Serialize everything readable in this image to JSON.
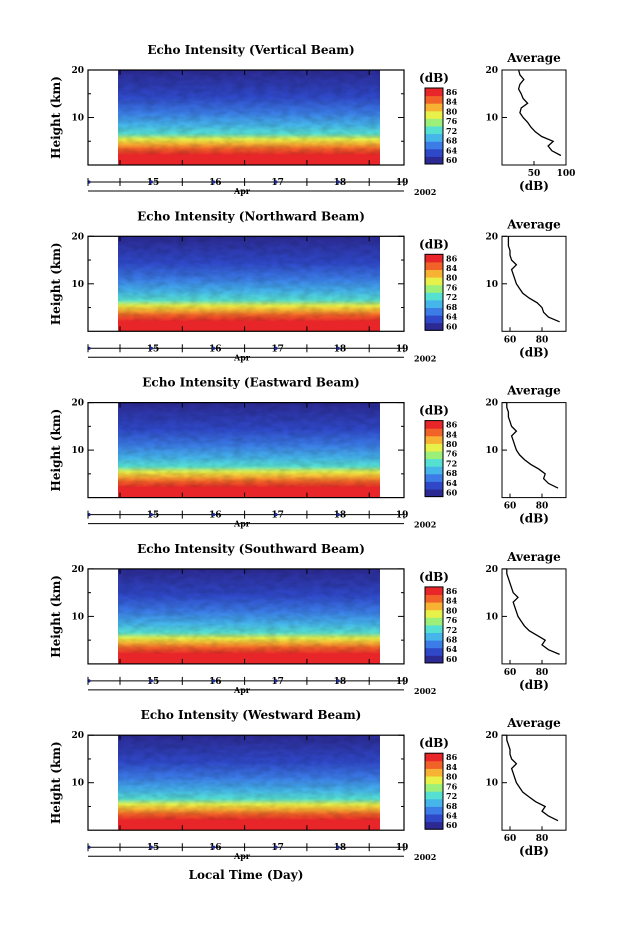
{
  "colors": {
    "colorbar": [
      "#2c2a92",
      "#2f48c8",
      "#3b7ce6",
      "#45b5ea",
      "#56e0d2",
      "#9cf07a",
      "#e8f04a",
      "#f7b233",
      "#f06228",
      "#e8262a"
    ]
  },
  "common": {
    "ylabel": "Height (km)",
    "height_ticks": [
      "20",
      "10"
    ],
    "day_ticks": [
      "15",
      "16",
      "17",
      "18",
      "19"
    ],
    "month": "Apr",
    "year": "2002",
    "colorbar_unit": "(dB)",
    "colorbar_ticks": [
      "86",
      "84",
      "80",
      "76",
      "72",
      "68",
      "64",
      "60"
    ],
    "average_title": "Average",
    "average_xlabel": "(dB)",
    "bottom_xlabel": "Local Time (Day)"
  },
  "chart_data": [
    {
      "type": "heatmap",
      "title": "Echo Intensity (Vertical Beam)",
      "xlabel": "Apr 2002",
      "ylabel": "Height (km)",
      "ylim": [
        0,
        20
      ],
      "colorbar_range": [
        60,
        86
      ],
      "average_profile": {
        "xticks": [
          "50",
          "100"
        ],
        "xlim": [
          0,
          100
        ],
        "height": [
          2,
          3,
          4,
          5,
          6,
          7,
          8,
          9,
          10,
          11,
          12,
          13,
          14,
          15,
          16,
          17,
          18,
          19,
          20
        ],
        "db": [
          92,
          78,
          72,
          80,
          62,
          52,
          45,
          40,
          33,
          28,
          30,
          40,
          33,
          30,
          26,
          28,
          34,
          28,
          26
        ]
      }
    },
    {
      "type": "heatmap",
      "title": "Echo Intensity (Northward Beam)",
      "xlabel": "Apr 2002",
      "ylabel": "Height (km)",
      "ylim": [
        0,
        20
      ],
      "colorbar_range": [
        60,
        86
      ],
      "average_profile": {
        "xticks": [
          "60",
          "80"
        ],
        "xlim": [
          55,
          95
        ],
        "height": [
          2,
          3,
          4,
          5,
          6,
          7,
          8,
          9,
          10,
          11,
          12,
          13,
          14,
          15,
          16,
          17,
          18,
          19,
          20
        ],
        "db": [
          91,
          84,
          81,
          80,
          77,
          72,
          68,
          66,
          64,
          63,
          62,
          61,
          64,
          61,
          60,
          60,
          59,
          59,
          59
        ]
      }
    },
    {
      "type": "heatmap",
      "title": "Echo Intensity (Eastward Beam)",
      "xlabel": "Apr 2002",
      "ylabel": "Height (km)",
      "ylim": [
        0,
        20
      ],
      "colorbar_range": [
        60,
        86
      ],
      "average_profile": {
        "xticks": [
          "60",
          "80"
        ],
        "xlim": [
          55,
          95
        ],
        "height": [
          2,
          3,
          4,
          5,
          6,
          7,
          8,
          9,
          10,
          11,
          12,
          13,
          14,
          15,
          16,
          17,
          18,
          19,
          20
        ],
        "db": [
          90,
          84,
          81,
          82,
          78,
          73,
          69,
          66,
          64,
          63,
          62,
          61,
          64,
          61,
          60,
          59,
          59,
          58,
          58
        ]
      }
    },
    {
      "type": "heatmap",
      "title": "Echo Intensity (Southward Beam)",
      "xlabel": "Apr 2002",
      "ylabel": "Height (km)",
      "ylim": [
        0,
        20
      ],
      "colorbar_range": [
        60,
        86
      ],
      "average_profile": {
        "xticks": [
          "60",
          "80"
        ],
        "xlim": [
          55,
          95
        ],
        "height": [
          2,
          3,
          4,
          5,
          6,
          7,
          8,
          9,
          10,
          11,
          12,
          13,
          14,
          15,
          16,
          17,
          18,
          19,
          20
        ],
        "db": [
          91,
          84,
          80,
          82,
          77,
          72,
          69,
          67,
          65,
          64,
          63,
          62,
          65,
          62,
          61,
          60,
          59,
          58,
          58
        ]
      }
    },
    {
      "type": "heatmap",
      "title": "Echo Intensity (Westward Beam)",
      "xlabel": "Apr 2002",
      "ylabel": "Height (km)",
      "ylim": [
        0,
        20
      ],
      "colorbar_range": [
        60,
        86
      ],
      "average_profile": {
        "xticks": [
          "60",
          "80"
        ],
        "xlim": [
          55,
          95
        ],
        "height": [
          2,
          3,
          4,
          5,
          6,
          7,
          8,
          9,
          10,
          11,
          12,
          13,
          14,
          15,
          16,
          17,
          18,
          19,
          20
        ],
        "db": [
          90,
          84,
          80,
          82,
          76,
          72,
          68,
          66,
          64,
          63,
          62,
          61,
          64,
          61,
          60,
          60,
          59,
          58,
          58
        ]
      }
    }
  ]
}
